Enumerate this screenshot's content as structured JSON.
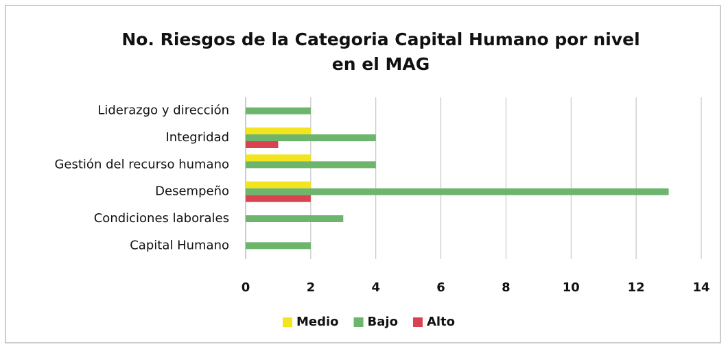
{
  "chart_data": {
    "type": "hbar",
    "title": "No. Riesgos de la Categoria Capital Humano  por nivel en el MAG",
    "categories": [
      "Liderazgo y dirección",
      "Integridad",
      "Gestión del recurso humano",
      "Desempeño",
      "Condiciones laborales",
      "Capital Humano"
    ],
    "series": [
      {
        "name": "Medio",
        "color": "#f2e520",
        "values": [
          0,
          2,
          2,
          2,
          0,
          0
        ]
      },
      {
        "name": "Bajo",
        "color": "#6db56d",
        "values": [
          2,
          4,
          4,
          13,
          3,
          2
        ]
      },
      {
        "name": "Alto",
        "color": "#d9434f",
        "values": [
          0,
          1,
          0,
          2,
          0,
          0
        ]
      }
    ],
    "xlim": [
      0,
      14
    ],
    "xticks": [
      0,
      2,
      4,
      6,
      8,
      10,
      12,
      14
    ],
    "grid": true,
    "legend": "bottom"
  }
}
